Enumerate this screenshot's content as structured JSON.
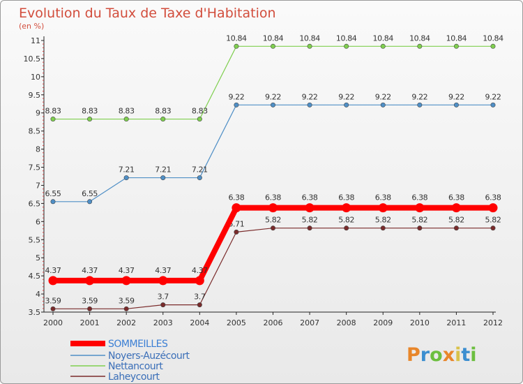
{
  "chart_data": {
    "type": "line",
    "title": "Evolution du Taux de Taxe d'Habitation",
    "unit_label": "(en %)",
    "x": [
      2000,
      2001,
      2002,
      2003,
      2004,
      2005,
      2006,
      2007,
      2008,
      2009,
      2010,
      2011,
      2012
    ],
    "x_tick_labels": [
      "2000",
      "2001",
      "2002",
      "2003",
      "2004",
      "2005",
      "2006",
      "2007",
      "2008",
      "2009",
      "2010",
      "2011",
      "2012"
    ],
    "ylim": [
      3.5,
      11
    ],
    "y_ticks": [
      3.5,
      4,
      4.5,
      5,
      5.5,
      6,
      6.5,
      7,
      7.5,
      8,
      8.5,
      9,
      9.5,
      10,
      10.5,
      11
    ],
    "y_tick_labels": [
      "3.5",
      "4",
      "4.5",
      "5",
      "5.5",
      "6",
      "6.5",
      "7",
      "7.5",
      "8",
      "8.5",
      "9",
      "9.5",
      "10",
      "10.5",
      "11"
    ],
    "grid": false,
    "legend_position": "bottom-left",
    "series": [
      {
        "name": "SOMMEILLES",
        "color": "#ff0000",
        "values": [
          4.37,
          4.37,
          4.37,
          4.37,
          4.37,
          6.38,
          6.38,
          6.38,
          6.38,
          6.38,
          6.38,
          6.38,
          6.38
        ],
        "labels": [
          "4.37",
          "4.37",
          "4.37",
          "4.37",
          "4.37",
          "6.38",
          "6.38",
          "6.38",
          "6.38",
          "6.38",
          "6.38",
          "6.38",
          "6.38"
        ]
      },
      {
        "name": "Noyers-Auzécourt",
        "color": "#4f8fc6",
        "values": [
          6.55,
          6.55,
          7.21,
          7.21,
          7.21,
          9.22,
          9.22,
          9.22,
          9.22,
          9.22,
          9.22,
          9.22,
          9.22
        ],
        "labels": [
          "6.55",
          "6.55",
          "7.21",
          "7.21",
          "7.21",
          "9.22",
          "9.22",
          "9.22",
          "9.22",
          "9.22",
          "9.22",
          "9.22",
          "9.22"
        ]
      },
      {
        "name": "Nettancourt",
        "color": "#7fcf4f",
        "values": [
          8.83,
          8.83,
          8.83,
          8.83,
          8.83,
          10.84,
          10.84,
          10.84,
          10.84,
          10.84,
          10.84,
          10.84,
          10.84
        ],
        "labels": [
          "8.83",
          "8.83",
          "8.83",
          "8.83",
          "8.83",
          "10.84",
          "10.84",
          "10.84",
          "10.84",
          "10.84",
          "10.84",
          "10.84",
          "10.84"
        ]
      },
      {
        "name": "Laheycourt",
        "color": "#7a2b2b",
        "values": [
          3.59,
          3.59,
          3.59,
          3.7,
          3.7,
          5.71,
          5.82,
          5.82,
          5.82,
          5.82,
          5.82,
          5.82,
          5.82
        ],
        "labels": [
          "3.59",
          "3.59",
          "3.59",
          "3.7",
          "3.7",
          "5.71",
          "5.82",
          "5.82",
          "5.82",
          "5.82",
          "5.82",
          "5.82",
          "5.82"
        ]
      }
    ]
  },
  "logo": {
    "text": "Proxiti",
    "letters": [
      "P",
      "r",
      "o",
      "x",
      "i",
      "t",
      "i"
    ],
    "colors": [
      "#e8862a",
      "#3b8ed0",
      "#6cbf3f",
      "#e8862a",
      "#d9c24a",
      "#3b8ed0",
      "#6cbf3f"
    ]
  }
}
